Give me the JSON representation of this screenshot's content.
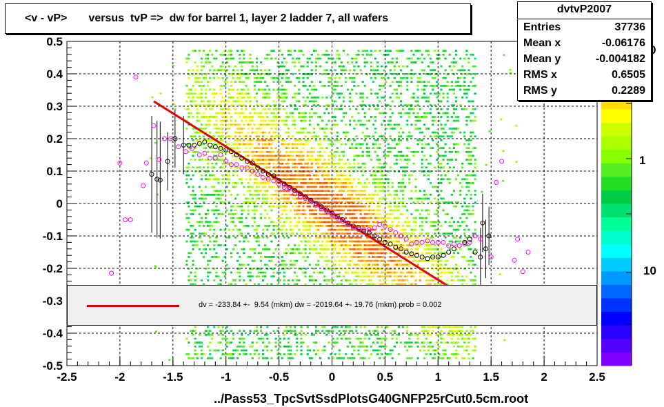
{
  "title": "<v - vP>       versus  tvP =>  dw for barrel 1, layer 2 ladder 7, all wafers",
  "stats": {
    "name": "dvtvP2007",
    "rows": [
      {
        "key": "Entries",
        "value": "37736"
      },
      {
        "key": "Mean x",
        "value": "-0.06176"
      },
      {
        "key": "Mean y",
        "value": "-0.004182"
      },
      {
        "key": "RMS x",
        "value": "0.6505"
      },
      {
        "key": "RMS y",
        "value": "0.2289"
      }
    ]
  },
  "legend": {
    "text": "dv = -233.84 +-  9.54 (mkm) dw = -2019.64 +- 19.76 (mkm) prob = 0.002",
    "line_color": "#e00000"
  },
  "footer": "../Pass53_TpcSvtSsdPlotsG40GNFP25rCut0.5cm.root",
  "chart_data": {
    "type": "heatmap",
    "title": "<v - vP>       versus  tvP =>  dw for barrel 1, layer 2 ladder 7, all wafers",
    "xlabel": "",
    "ylabel": "",
    "xlim": [
      -2.5,
      2.5
    ],
    "ylim": [
      -0.5,
      0.5
    ],
    "x_ticks": [
      "-2.5",
      "-2",
      "-1.5",
      "-1",
      "-0.5",
      "0",
      "0.5",
      "1",
      "1.5",
      "2",
      "2.5"
    ],
    "y_ticks": [
      "-0.5",
      "-0.4",
      "-0.3",
      "-0.2",
      "-0.1",
      "0",
      "0.1",
      "0.2",
      "0.3",
      "0.4",
      "0.5"
    ],
    "grid": true,
    "colorbar": {
      "scale": "log",
      "labels": [
        "1"
      ],
      "partial_labels": [
        "0",
        "10"
      ],
      "colors": [
        "#7f00ff",
        "#5500ff",
        "#2a00ff",
        "#0000ff",
        "#0033ff",
        "#0066ff",
        "#0099ff",
        "#00ccff",
        "#00ffff",
        "#00ffcc",
        "#00ff99",
        "#00e070",
        "#00cc44",
        "#22dd22",
        "#55ee22",
        "#88ff00",
        "#aaff00",
        "#ccff00",
        "#ffff00",
        "#ffdd00",
        "#ffbb00",
        "#ff9900",
        "#ff7700",
        "#ff5500"
      ]
    },
    "fit_line": {
      "color": "#e00000",
      "x": [
        -1.68,
        1.12
      ],
      "y": [
        0.315,
        -0.26
      ]
    },
    "series": [
      {
        "marker": "circle-black",
        "color": "#000000",
        "points": [
          [
            -1.7,
            0.09
          ],
          [
            -1.65,
            0.075
          ],
          [
            -1.62,
            0.072
          ],
          [
            -1.55,
            0.13
          ],
          [
            -1.48,
            0.2
          ],
          [
            -1.4,
            0.18
          ],
          [
            -1.35,
            0.18
          ],
          [
            -1.3,
            0.18
          ],
          [
            -1.25,
            0.185
          ],
          [
            -1.2,
            0.19
          ],
          [
            -1.15,
            0.18
          ],
          [
            -1.1,
            0.175
          ],
          [
            -1.05,
            0.17
          ],
          [
            -1.0,
            0.165
          ],
          [
            -0.95,
            0.16
          ],
          [
            -0.9,
            0.15
          ],
          [
            -0.85,
            0.14
          ],
          [
            -0.8,
            0.13
          ],
          [
            -0.75,
            0.125
          ],
          [
            -0.7,
            0.11
          ],
          [
            -0.65,
            0.1
          ],
          [
            -0.6,
            0.09
          ],
          [
            -0.55,
            0.085
          ],
          [
            -0.5,
            0.07
          ],
          [
            -0.45,
            0.06
          ],
          [
            -0.4,
            0.05
          ],
          [
            -0.35,
            0.04
          ],
          [
            -0.3,
            0.03
          ],
          [
            -0.25,
            0.02
          ],
          [
            -0.2,
            0.01
          ],
          [
            -0.15,
            0.0
          ],
          [
            -0.1,
            -0.01
          ],
          [
            -0.05,
            -0.02
          ],
          [
            0.0,
            -0.03
          ],
          [
            0.05,
            -0.04
          ],
          [
            0.1,
            -0.05
          ],
          [
            0.15,
            -0.06
          ],
          [
            0.2,
            -0.07
          ],
          [
            0.25,
            -0.075
          ],
          [
            0.3,
            -0.085
          ],
          [
            0.35,
            -0.09
          ],
          [
            0.4,
            -0.1
          ],
          [
            0.45,
            -0.11
          ],
          [
            0.5,
            -0.12
          ],
          [
            0.55,
            -0.125
          ],
          [
            0.6,
            -0.135
          ],
          [
            0.65,
            -0.14
          ],
          [
            0.7,
            -0.15
          ],
          [
            0.75,
            -0.155
          ],
          [
            0.8,
            -0.16
          ],
          [
            0.85,
            -0.165
          ],
          [
            0.9,
            -0.17
          ],
          [
            0.95,
            -0.165
          ],
          [
            1.0,
            -0.165
          ],
          [
            1.05,
            -0.16
          ],
          [
            1.1,
            -0.15
          ],
          [
            1.15,
            -0.14
          ],
          [
            1.2,
            -0.13
          ],
          [
            1.25,
            -0.12
          ],
          [
            1.3,
            -0.11
          ],
          [
            1.35,
            -0.15
          ],
          [
            1.4,
            -0.165
          ],
          [
            1.42,
            -0.06
          ],
          [
            1.45,
            -0.14
          ],
          [
            1.48,
            -0.1
          ]
        ]
      },
      {
        "marker": "circle-magenta",
        "color": "#ff00ff",
        "points": [
          [
            -2.08,
            -0.215
          ],
          [
            -2.0,
            0.125
          ],
          [
            -1.95,
            -0.05
          ],
          [
            -1.9,
            -0.05
          ],
          [
            -1.85,
            0.39
          ],
          [
            -1.78,
            0.055
          ],
          [
            -1.75,
            0.125
          ],
          [
            -1.68,
            0.24
          ],
          [
            -1.63,
            0.135
          ],
          [
            -1.58,
            0.2
          ],
          [
            -1.52,
            0.2
          ],
          [
            -1.45,
            0.175
          ],
          [
            -1.38,
            0.16
          ],
          [
            -1.32,
            0.17
          ],
          [
            -1.25,
            0.15
          ],
          [
            -1.2,
            0.155
          ],
          [
            -1.15,
            0.14
          ],
          [
            -1.1,
            0.14
          ],
          [
            -1.05,
            0.15
          ],
          [
            -1.0,
            0.13
          ],
          [
            -0.95,
            0.12
          ],
          [
            -0.9,
            0.12
          ],
          [
            -0.85,
            0.11
          ],
          [
            -0.8,
            0.11
          ],
          [
            -0.75,
            0.1
          ],
          [
            -0.7,
            0.09
          ],
          [
            -0.65,
            0.08
          ],
          [
            -0.6,
            0.075
          ],
          [
            -0.55,
            0.07
          ],
          [
            -0.5,
            0.06
          ],
          [
            -0.45,
            0.05
          ],
          [
            -0.4,
            0.045
          ],
          [
            -0.35,
            0.03
          ],
          [
            -0.3,
            0.02
          ],
          [
            -0.25,
            0.015
          ],
          [
            -0.2,
            0.005
          ],
          [
            -0.15,
            -0.005
          ],
          [
            -0.1,
            -0.015
          ],
          [
            -0.05,
            -0.025
          ],
          [
            0.0,
            -0.035
          ],
          [
            0.05,
            -0.045
          ],
          [
            0.1,
            -0.055
          ],
          [
            0.15,
            -0.065
          ],
          [
            0.2,
            -0.075
          ],
          [
            0.25,
            -0.08
          ],
          [
            0.3,
            -0.08
          ],
          [
            0.35,
            -0.08
          ],
          [
            0.4,
            -0.075
          ],
          [
            0.45,
            -0.065
          ],
          [
            0.5,
            -0.07
          ],
          [
            0.55,
            -0.08
          ],
          [
            0.6,
            -0.09
          ],
          [
            0.65,
            -0.1
          ],
          [
            0.7,
            -0.11
          ],
          [
            0.75,
            -0.125
          ],
          [
            0.8,
            -0.12
          ],
          [
            0.85,
            -0.12
          ],
          [
            0.9,
            -0.115
          ],
          [
            0.95,
            -0.12
          ],
          [
            1.0,
            -0.12
          ],
          [
            1.05,
            -0.12
          ],
          [
            1.1,
            -0.13
          ],
          [
            1.15,
            -0.125
          ],
          [
            1.2,
            -0.13
          ],
          [
            1.25,
            -0.125
          ],
          [
            1.3,
            -0.12
          ],
          [
            1.35,
            -0.1
          ],
          [
            1.4,
            -0.11
          ],
          [
            1.5,
            -0.165
          ],
          [
            1.55,
            0.065
          ],
          [
            1.6,
            0.13
          ],
          [
            1.72,
            -0.175
          ],
          [
            1.75,
            -0.11
          ],
          [
            1.8,
            -0.21
          ],
          [
            1.85,
            -0.15
          ]
        ]
      }
    ]
  }
}
